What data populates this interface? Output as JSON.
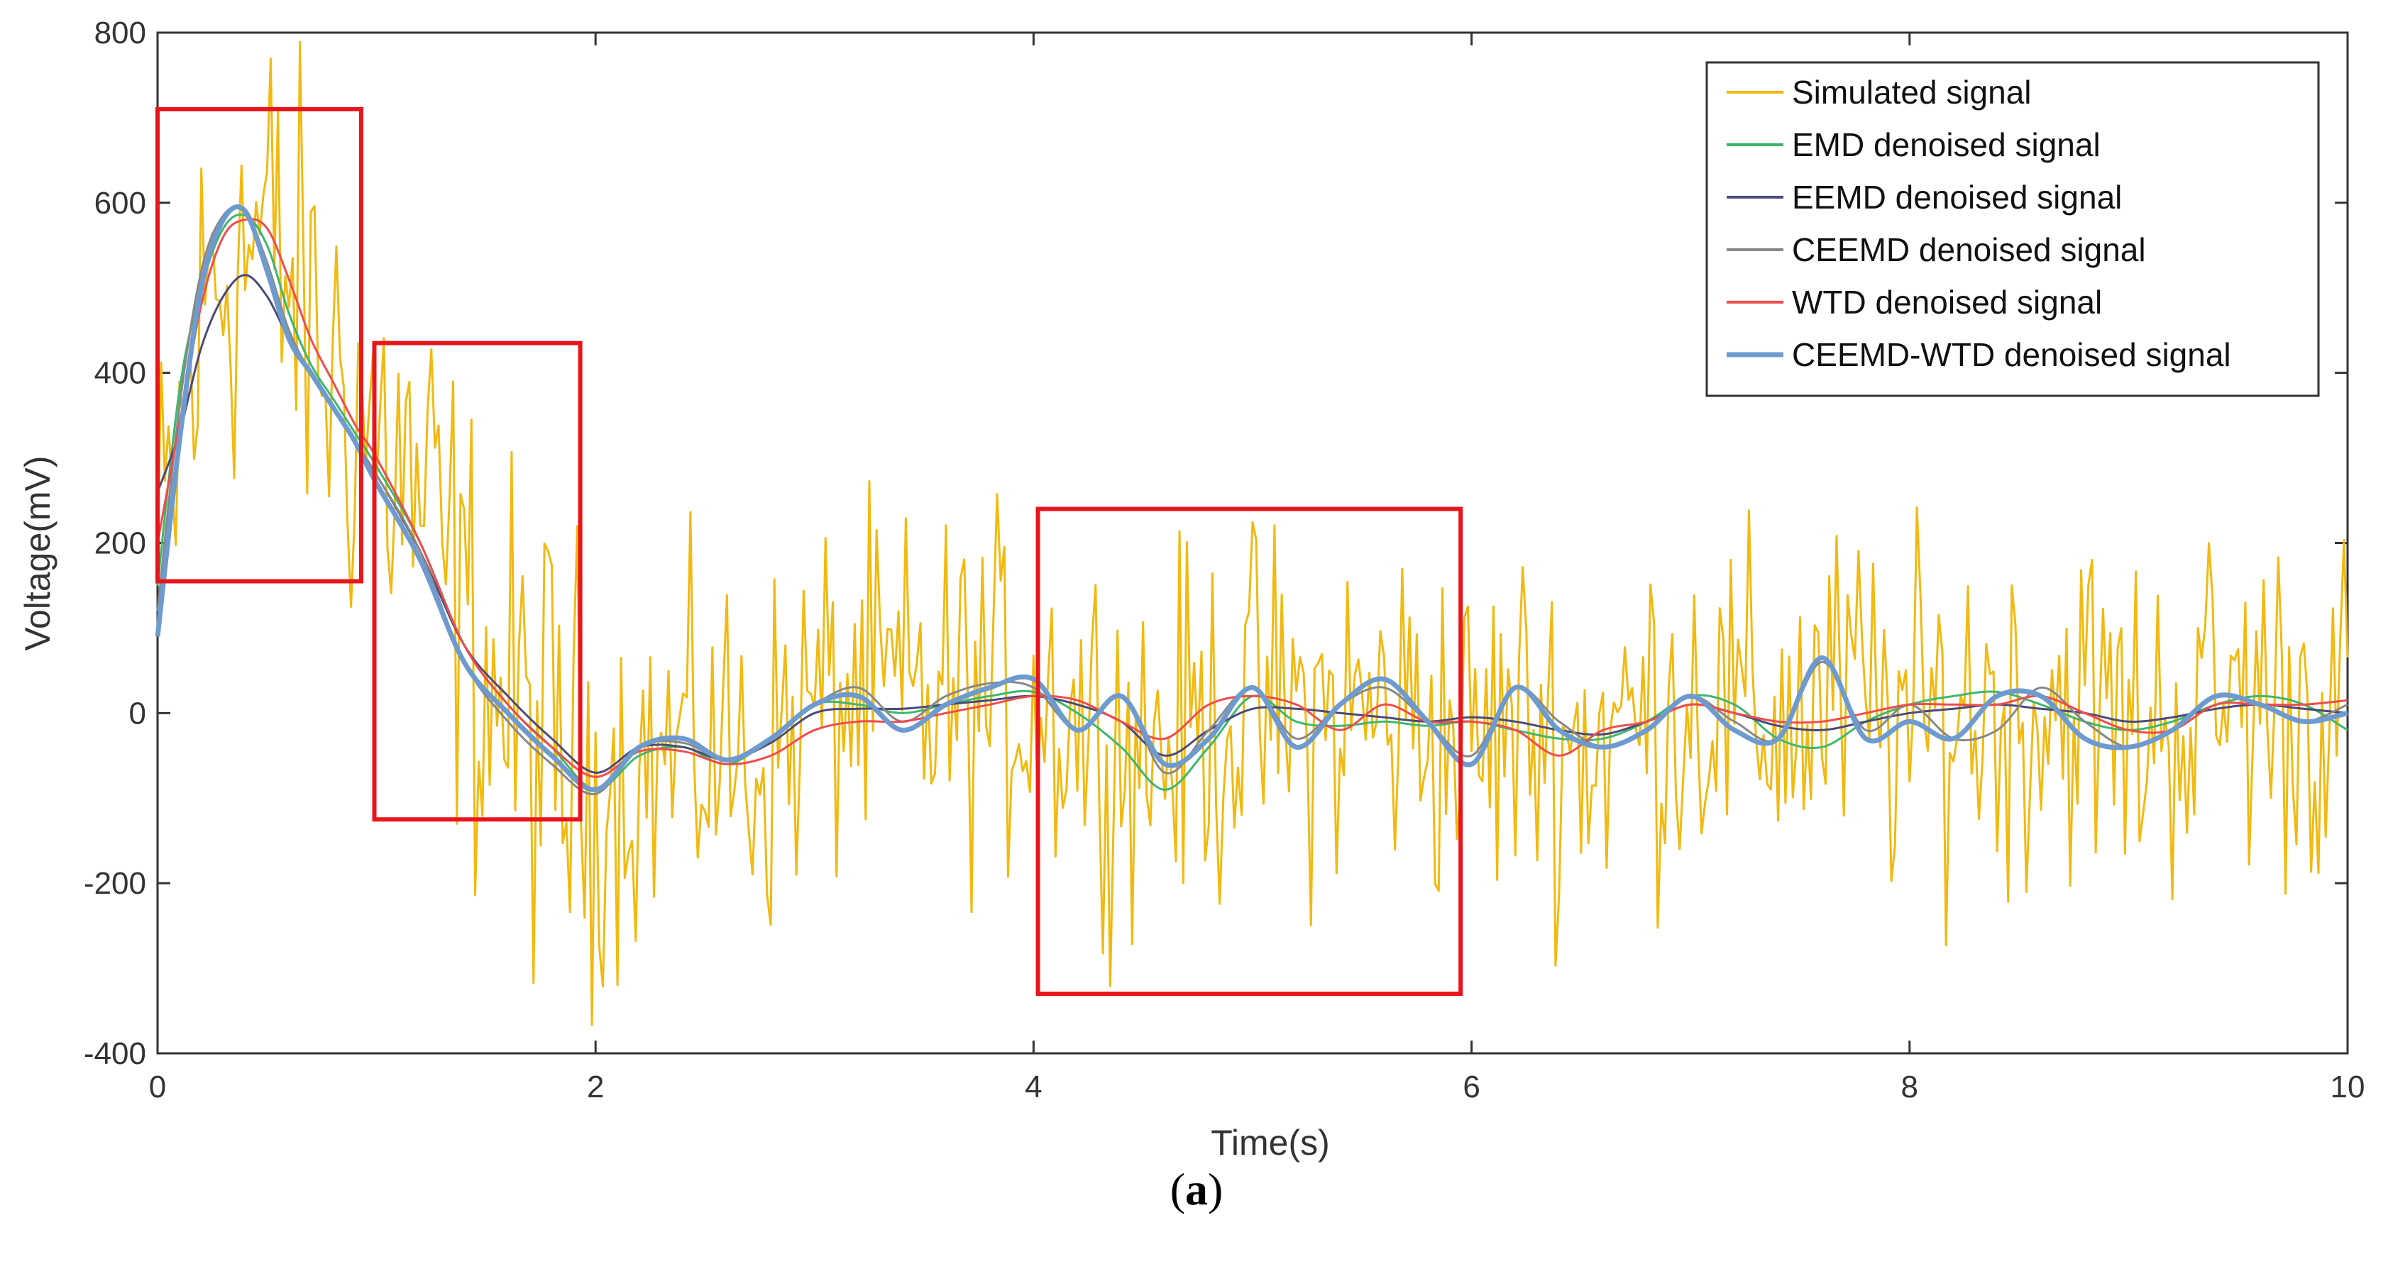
{
  "chart_data": {
    "type": "line",
    "title": "",
    "xlabel": "Time(s)",
    "ylabel": "Voltage(mV)",
    "xlim": [
      0,
      10
    ],
    "ylim": [
      -400,
      800
    ],
    "xticks": [
      0,
      2,
      4,
      6,
      8,
      10
    ],
    "yticks": [
      -400,
      -200,
      0,
      200,
      400,
      600,
      800
    ],
    "xtick_labels": [
      "0",
      "2",
      "4",
      "6",
      "8",
      "10"
    ],
    "ytick_labels": [
      "-400",
      "-200",
      "0",
      "200",
      "400",
      "600",
      "800"
    ],
    "legend_position": "top-right",
    "series": [
      {
        "name": "Simulated signal",
        "color": "#F2B90F",
        "noisy": true,
        "x": [
          0,
          0.25,
          0.5,
          0.75,
          1,
          1.25,
          1.5,
          1.75,
          2,
          2.25,
          2.5,
          2.75,
          3,
          3.25,
          3.5,
          3.75,
          4,
          4.25,
          4.5,
          4.75,
          5,
          5.25,
          5.5,
          5.75,
          6,
          6.25,
          6.5,
          6.75,
          7,
          7.25,
          7.5,
          7.75,
          8,
          8.25,
          8.5,
          8.75,
          9,
          9.25,
          9.5,
          9.75,
          10
        ],
        "y": [
          150,
          520,
          560,
          420,
          330,
          220,
          40,
          -40,
          -90,
          -60,
          -40,
          -60,
          10,
          20,
          10,
          20,
          20,
          -10,
          -40,
          -20,
          10,
          -10,
          0,
          0,
          -40,
          -10,
          -40,
          -10,
          20,
          -10,
          0,
          20,
          -20,
          10,
          0,
          20,
          -20,
          0,
          20,
          10,
          0
        ]
      },
      {
        "name": "EMD denoised signal",
        "color": "#3DB86B",
        "x": [
          0,
          0.1,
          0.2,
          0.3,
          0.4,
          0.5,
          0.6,
          0.7,
          0.8,
          0.9,
          1,
          1.2,
          1.4,
          1.6,
          1.8,
          2,
          2.2,
          2.4,
          2.6,
          2.8,
          3,
          3.2,
          3.4,
          3.6,
          3.8,
          4,
          4.2,
          4.4,
          4.6,
          4.8,
          5,
          5.2,
          5.4,
          5.6,
          5.8,
          6,
          6.2,
          6.4,
          6.6,
          6.8,
          7,
          7.2,
          7.4,
          7.6,
          7.8,
          8,
          8.2,
          8.4,
          8.6,
          8.8,
          9,
          9.2,
          9.4,
          9.6,
          9.8,
          10
        ],
        "y": [
          150,
          380,
          500,
          570,
          585,
          550,
          470,
          410,
          370,
          330,
          290,
          200,
          80,
          10,
          -40,
          -90,
          -50,
          -40,
          -60,
          -30,
          10,
          10,
          0,
          10,
          20,
          25,
          0,
          -40,
          -90,
          -40,
          20,
          -10,
          -15,
          -10,
          -15,
          -10,
          -20,
          -30,
          -30,
          -10,
          20,
          10,
          -30,
          -40,
          -10,
          10,
          20,
          25,
          10,
          -10,
          -20,
          -10,
          10,
          20,
          10,
          -20
        ]
      },
      {
        "name": "EEMD denoised signal",
        "color": "#4A4A7A",
        "x": [
          0,
          0.1,
          0.2,
          0.3,
          0.4,
          0.5,
          0.6,
          0.7,
          0.8,
          0.9,
          1,
          1.2,
          1.4,
          1.6,
          1.8,
          2,
          2.2,
          2.4,
          2.6,
          2.8,
          3,
          3.2,
          3.4,
          3.6,
          3.8,
          4,
          4.2,
          4.4,
          4.6,
          4.8,
          5,
          5.2,
          5.4,
          5.6,
          5.8,
          6,
          6.2,
          6.4,
          6.6,
          6.8,
          7,
          7.2,
          7.4,
          7.6,
          7.8,
          8,
          8.2,
          8.4,
          8.6,
          8.8,
          9,
          9.2,
          9.4,
          9.6,
          9.8,
          10
        ],
        "y": [
          260,
          330,
          430,
          490,
          515,
          490,
          440,
          400,
          360,
          320,
          280,
          190,
          80,
          20,
          -30,
          -70,
          -40,
          -40,
          -55,
          -35,
          0,
          5,
          5,
          10,
          15,
          20,
          10,
          -10,
          -50,
          -20,
          5,
          5,
          0,
          -5,
          -10,
          -5,
          -10,
          -20,
          -25,
          -10,
          10,
          0,
          -15,
          -20,
          -10,
          0,
          5,
          10,
          5,
          0,
          -10,
          -5,
          5,
          10,
          5,
          0
        ]
      },
      {
        "name": "CEEMD denoised signal",
        "color": "#888888",
        "x": [
          0,
          0.1,
          0.2,
          0.3,
          0.4,
          0.5,
          0.6,
          0.7,
          0.8,
          0.9,
          1,
          1.2,
          1.4,
          1.6,
          1.8,
          2,
          2.2,
          2.4,
          2.6,
          2.8,
          3,
          3.2,
          3.4,
          3.6,
          3.8,
          4,
          4.2,
          4.4,
          4.6,
          4.8,
          5,
          5.2,
          5.4,
          5.6,
          5.8,
          6,
          6.2,
          6.4,
          6.6,
          6.8,
          7,
          7.2,
          7.4,
          7.6,
          7.8,
          8,
          8.2,
          8.4,
          8.6,
          8.8,
          9,
          9.2,
          9.4,
          9.6,
          9.8,
          10
        ],
        "y": [
          120,
          360,
          520,
          585,
          590,
          530,
          450,
          400,
          360,
          320,
          280,
          190,
          60,
          -10,
          -60,
          -95,
          -40,
          -35,
          -55,
          -30,
          10,
          30,
          -10,
          20,
          35,
          30,
          -20,
          20,
          -70,
          -20,
          30,
          -30,
          10,
          30,
          -10,
          -50,
          30,
          -10,
          -40,
          -20,
          20,
          -10,
          -30,
          60,
          -20,
          10,
          -30,
          -20,
          30,
          -10,
          -40,
          -20,
          20,
          10,
          -10,
          10
        ]
      },
      {
        "name": "WTD denoised signal",
        "color": "#F04C4C",
        "x": [
          0,
          0.1,
          0.2,
          0.3,
          0.4,
          0.5,
          0.6,
          0.7,
          0.8,
          0.9,
          1,
          1.2,
          1.4,
          1.6,
          1.8,
          2,
          2.2,
          2.4,
          2.6,
          2.8,
          3,
          3.2,
          3.4,
          3.6,
          3.8,
          4,
          4.2,
          4.4,
          4.6,
          4.8,
          5,
          5.2,
          5.4,
          5.6,
          5.8,
          6,
          6.2,
          6.4,
          6.6,
          6.8,
          7,
          7.2,
          7.4,
          7.6,
          7.8,
          8,
          8.2,
          8.4,
          8.6,
          8.8,
          9,
          9.2,
          9.4,
          9.6,
          9.8,
          10
        ],
        "y": [
          200,
          340,
          480,
          560,
          580,
          570,
          510,
          440,
          390,
          340,
          300,
          200,
          80,
          10,
          -40,
          -75,
          -45,
          -45,
          -60,
          -50,
          -20,
          -10,
          -10,
          0,
          10,
          20,
          15,
          -10,
          -30,
          10,
          20,
          10,
          -20,
          10,
          -10,
          -10,
          -20,
          -50,
          -20,
          -10,
          10,
          0,
          -10,
          -10,
          0,
          10,
          10,
          10,
          20,
          0,
          -20,
          -20,
          10,
          10,
          10,
          15
        ]
      },
      {
        "name": "CEEMD-WTD denoised signal",
        "color": "#6E9BCF",
        "thick": true,
        "x": [
          0,
          0.1,
          0.2,
          0.3,
          0.4,
          0.5,
          0.6,
          0.7,
          0.8,
          0.9,
          1,
          1.2,
          1.4,
          1.6,
          1.8,
          2,
          2.2,
          2.4,
          2.6,
          2.8,
          3,
          3.2,
          3.4,
          3.6,
          3.8,
          4,
          4.2,
          4.4,
          4.6,
          4.8,
          5,
          5.2,
          5.4,
          5.6,
          5.8,
          6,
          6.2,
          6.4,
          6.6,
          6.8,
          7,
          7.2,
          7.4,
          7.6,
          7.8,
          8,
          8.2,
          8.4,
          8.6,
          8.8,
          9,
          9.2,
          9.4,
          9.6,
          9.8,
          10
        ],
        "y": [
          90,
          320,
          500,
          580,
          590,
          520,
          440,
          400,
          360,
          320,
          270,
          180,
          60,
          0,
          -50,
          -90,
          -40,
          -30,
          -55,
          -30,
          10,
          20,
          -20,
          10,
          30,
          40,
          -20,
          20,
          -60,
          -30,
          30,
          -40,
          10,
          40,
          -10,
          -60,
          30,
          -20,
          -40,
          -20,
          20,
          -20,
          -30,
          65,
          -30,
          -10,
          -30,
          20,
          20,
          -30,
          -40,
          -20,
          20,
          10,
          -10,
          0
        ]
      }
    ],
    "annotations": [
      {
        "type": "rect",
        "color": "#E8151B",
        "x0": 0,
        "x1": 0.93,
        "y0": 155,
        "y1": 710
      },
      {
        "type": "rect",
        "color": "#E8151B",
        "x0": 0.99,
        "x1": 1.93,
        "y0": -125,
        "y1": 435
      },
      {
        "type": "rect",
        "color": "#E8151B",
        "x0": 4.02,
        "x1": 5.95,
        "y0": -330,
        "y1": 240
      }
    ]
  },
  "caption": {
    "open": "(",
    "letter": "a",
    "close": ")"
  }
}
